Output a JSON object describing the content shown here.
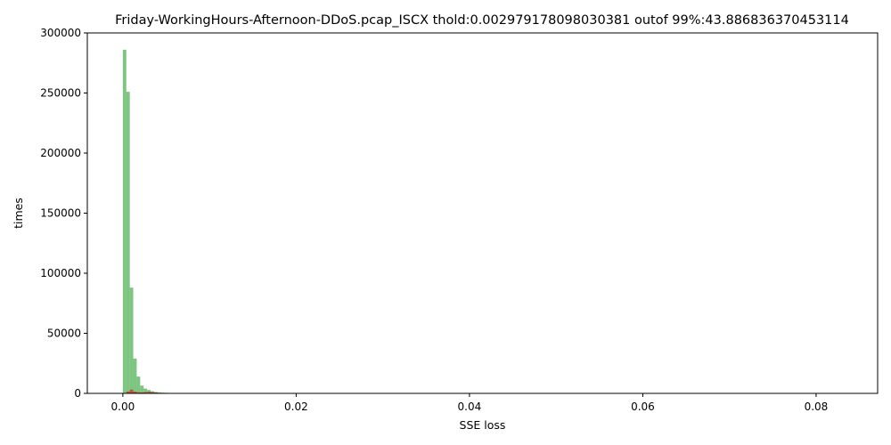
{
  "chart_data": {
    "type": "bar",
    "title": "Friday-WorkingHours-Afternoon-DDoS.pcap_ISCX thold:0.002979178098030381 outof 99%:43.886836370453114",
    "xlabel": "SSE loss",
    "ylabel": "times",
    "xlim": [
      -0.0041,
      0.0871
    ],
    "ylim": [
      0,
      300000
    ],
    "x_ticks": [
      0.0,
      0.02,
      0.04,
      0.06,
      0.08
    ],
    "x_tick_labels": [
      "0.00",
      "0.02",
      "0.04",
      "0.06",
      "0.08"
    ],
    "y_ticks": [
      0,
      50000,
      100000,
      150000,
      200000,
      250000,
      300000
    ],
    "y_tick_labels": [
      "0",
      "50000",
      "100000",
      "150000",
      "200000",
      "250000",
      "300000"
    ],
    "bin_width": 0.0004,
    "grid": false,
    "series": [
      {
        "color": "#4caf50",
        "opacity": 0.72,
        "bins": [
          {
            "x0": 0.0,
            "value": 286000
          },
          {
            "x0": 0.0004,
            "value": 251000
          },
          {
            "x0": 0.0008,
            "value": 88000
          },
          {
            "x0": 0.0012,
            "value": 29000
          },
          {
            "x0": 0.0016,
            "value": 14000
          },
          {
            "x0": 0.002,
            "value": 6500
          },
          {
            "x0": 0.0024,
            "value": 4000
          },
          {
            "x0": 0.0028,
            "value": 2800
          },
          {
            "x0": 0.0032,
            "value": 1800
          },
          {
            "x0": 0.0036,
            "value": 1200
          },
          {
            "x0": 0.004,
            "value": 900
          },
          {
            "x0": 0.0044,
            "value": 600
          },
          {
            "x0": 0.0048,
            "value": 450
          },
          {
            "x0": 0.0052,
            "value": 350
          },
          {
            "x0": 0.0056,
            "value": 300
          },
          {
            "x0": 0.006,
            "value": 200
          }
        ]
      },
      {
        "color": "#d62728",
        "opacity": 0.72,
        "bins": [
          {
            "x0": 0.0,
            "value": 300
          },
          {
            "x0": 0.0004,
            "value": 1500
          },
          {
            "x0": 0.0008,
            "value": 3200
          },
          {
            "x0": 0.0012,
            "value": 1400
          },
          {
            "x0": 0.0016,
            "value": 900
          },
          {
            "x0": 0.002,
            "value": 800
          },
          {
            "x0": 0.0024,
            "value": 1100
          },
          {
            "x0": 0.0028,
            "value": 1300
          },
          {
            "x0": 0.0032,
            "value": 1000
          },
          {
            "x0": 0.0036,
            "value": 700
          },
          {
            "x0": 0.004,
            "value": 400
          },
          {
            "x0": 0.0044,
            "value": 200
          }
        ]
      }
    ]
  }
}
